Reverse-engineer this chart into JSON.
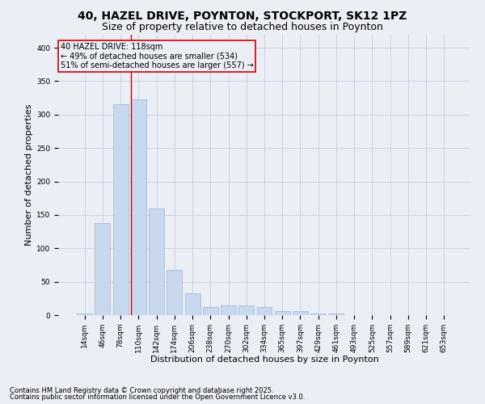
{
  "title_line1": "40, HAZEL DRIVE, POYNTON, STOCKPORT, SK12 1PZ",
  "title_line2": "Size of property relative to detached houses in Poynton",
  "xlabel": "Distribution of detached houses by size in Poynton",
  "ylabel": "Number of detached properties",
  "categories": [
    "14sqm",
    "46sqm",
    "78sqm",
    "110sqm",
    "142sqm",
    "174sqm",
    "206sqm",
    "238sqm",
    "270sqm",
    "302sqm",
    "334sqm",
    "365sqm",
    "397sqm",
    "429sqm",
    "461sqm",
    "493sqm",
    "525sqm",
    "557sqm",
    "589sqm",
    "621sqm",
    "653sqm"
  ],
  "values": [
    3,
    138,
    316,
    323,
    160,
    68,
    33,
    12,
    15,
    15,
    12,
    6,
    6,
    3,
    3,
    0,
    0,
    0,
    0,
    0,
    0
  ],
  "bar_color": "#c8d8ee",
  "bar_edgecolor": "#9ab4d4",
  "grid_color": "#c8cce0",
  "background_color": "#eceef6",
  "annotation_line1": "40 HAZEL DRIVE: 118sqm",
  "annotation_line2": "← 49% of detached houses are smaller (534)",
  "annotation_line3": "51% of semi-detached houses are larger (557) →",
  "annotation_box_edgecolor": "#cc0000",
  "vline_color": "#cc0000",
  "vline_x": 3.0,
  "ylim": [
    0,
    420
  ],
  "yticks": [
    0,
    50,
    100,
    150,
    200,
    250,
    300,
    350,
    400
  ],
  "footer_line1": "Contains HM Land Registry data © Crown copyright and database right 2025.",
  "footer_line2": "Contains public sector information licensed under the Open Government Licence v3.0.",
  "title_fontsize": 10,
  "subtitle_fontsize": 9,
  "label_fontsize": 8,
  "tick_fontsize": 6.5,
  "annot_fontsize": 7,
  "footer_fontsize": 6
}
